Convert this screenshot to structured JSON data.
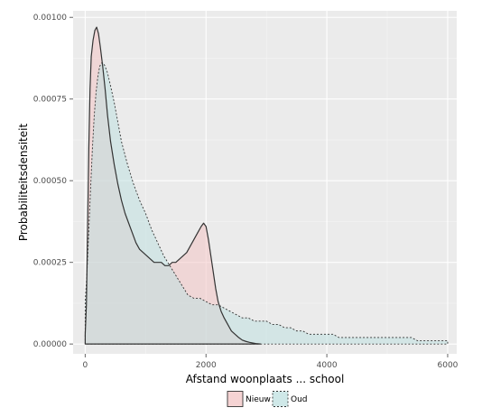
{
  "chart_data": {
    "type": "area",
    "title": "",
    "xlabel": "Afstand woonplaats ... school",
    "ylabel": "Probabiliteitsdensiteit",
    "xlim": [
      -200,
      6150
    ],
    "ylim": [
      -3e-05,
      0.00102
    ],
    "x_ticks": [
      0,
      2000,
      4000,
      6000
    ],
    "x_tick_labels": [
      "0",
      "2000",
      "4000",
      "6000"
    ],
    "y_ticks": [
      0,
      0.00025,
      0.0005,
      0.00075,
      0.001
    ],
    "y_tick_labels": [
      "0.00000",
      "0.00025",
      "0.00050",
      "0.00075",
      "0.00100"
    ],
    "grid": true,
    "legend_position": "bottom",
    "colors": {
      "panel_background": "#ebebeb",
      "grid_major": "#ffffff",
      "grid_minor": "#f5f5f5",
      "nieuw_fill": "#f2c4c4",
      "oud_fill": "#bfe0e0",
      "line": "#333333",
      "axis_tick": "#666666"
    },
    "series": [
      {
        "name": "Nieuw",
        "line_style": "solid",
        "x": [
          0,
          20,
          40,
          60,
          80,
          100,
          130,
          160,
          190,
          220,
          250,
          290,
          330,
          370,
          420,
          480,
          540,
          600,
          660,
          720,
          780,
          840,
          900,
          960,
          1020,
          1080,
          1140,
          1200,
          1260,
          1320,
          1380,
          1440,
          1500,
          1560,
          1620,
          1680,
          1740,
          1800,
          1860,
          1920,
          1960,
          2000,
          2040,
          2080,
          2120,
          2160,
          2200,
          2250,
          2300,
          2360,
          2420,
          2480,
          2540,
          2600,
          2660,
          2720,
          2780,
          2840,
          2900
        ],
        "y": [
          3e-05,
          0.00012,
          0.00035,
          0.0006,
          0.00078,
          0.00088,
          0.00093,
          0.00096,
          0.00097,
          0.00095,
          0.00091,
          0.00085,
          0.00078,
          0.0007,
          0.00062,
          0.00055,
          0.00049,
          0.00044,
          0.0004,
          0.00037,
          0.00034,
          0.00031,
          0.00029,
          0.00028,
          0.00027,
          0.00026,
          0.00025,
          0.00025,
          0.00025,
          0.00024,
          0.00024,
          0.00025,
          0.00025,
          0.00026,
          0.00027,
          0.00028,
          0.0003,
          0.00032,
          0.00034,
          0.00036,
          0.00037,
          0.00036,
          0.00032,
          0.00027,
          0.00022,
          0.00017,
          0.00013,
          0.0001,
          8e-05,
          6e-05,
          4e-05,
          3e-05,
          2e-05,
          1.2e-05,
          8e-06,
          5e-06,
          3e-06,
          1e-06,
          0
        ]
      },
      {
        "name": "Oud",
        "line_style": "dotted",
        "x": [
          0,
          30,
          60,
          90,
          120,
          150,
          180,
          210,
          240,
          270,
          300,
          330,
          370,
          420,
          480,
          540,
          600,
          700,
          800,
          900,
          1000,
          1100,
          1200,
          1300,
          1400,
          1500,
          1600,
          1700,
          1800,
          1900,
          2000,
          2100,
          2200,
          2300,
          2400,
          2500,
          2600,
          2700,
          2800,
          2900,
          3000,
          3100,
          3200,
          3300,
          3400,
          3500,
          3600,
          3700,
          3800,
          3900,
          4000,
          4100,
          4200,
          4300,
          4400,
          4500,
          4600,
          4700,
          4800,
          4900,
          5000,
          5100,
          5200,
          5300,
          5400,
          5500,
          5600,
          5700,
          5800,
          5900,
          6000
        ],
        "y": [
          0.00013,
          0.00022,
          0.00035,
          0.00048,
          0.0006,
          0.0007,
          0.00077,
          0.00082,
          0.00085,
          0.00086,
          0.00086,
          0.00085,
          0.00083,
          0.00079,
          0.00074,
          0.00068,
          0.00062,
          0.00055,
          0.00049,
          0.00044,
          0.0004,
          0.00035,
          0.00031,
          0.00027,
          0.00024,
          0.00021,
          0.00018,
          0.00015,
          0.00014,
          0.00014,
          0.00013,
          0.00012,
          0.00012,
          0.00011,
          0.0001,
          9e-05,
          8e-05,
          8e-05,
          7e-05,
          7e-05,
          7e-05,
          6e-05,
          6e-05,
          5e-05,
          5e-05,
          4e-05,
          4e-05,
          3e-05,
          3e-05,
          3e-05,
          3e-05,
          3e-05,
          2e-05,
          2e-05,
          2e-05,
          2e-05,
          2e-05,
          2e-05,
          2e-05,
          2e-05,
          2e-05,
          2e-05,
          2e-05,
          2e-05,
          2e-05,
          1e-05,
          1e-05,
          1e-05,
          1e-05,
          1e-05,
          1e-05
        ]
      }
    ]
  }
}
